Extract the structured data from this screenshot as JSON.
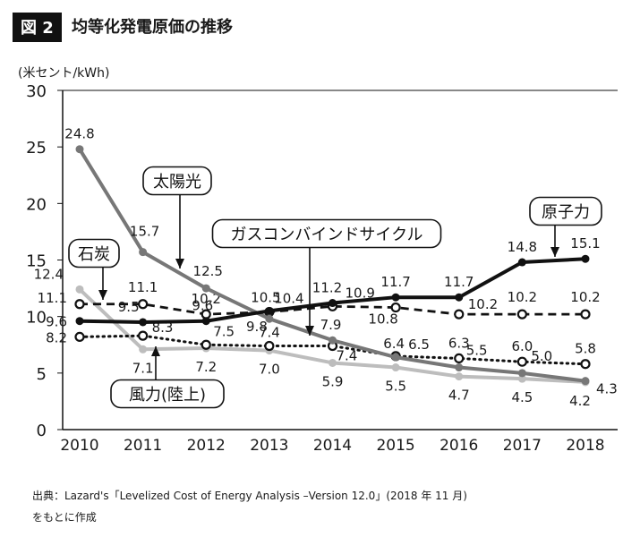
{
  "figure_label": "図 2",
  "figure_title": "均等化発電原価の推移",
  "source_line1": "出典：Lazard's「Levelized Cost of Energy Analysis –Version 12.0」(2018 年 11 月)",
  "source_line2": "をもとに作成",
  "colors": {
    "nuclear": "#111111",
    "solar": "#777777",
    "gas": "#111111",
    "coal": "#111111",
    "wind": "#bdbdbd",
    "axis": "#111111"
  },
  "chart_data": {
    "type": "line",
    "ylabel": "(米セント/kWh)",
    "xlabel": "",
    "ylim": [
      0,
      30
    ],
    "yticks": [
      0,
      5,
      10,
      15,
      20,
      25,
      30
    ],
    "grid": false,
    "x": [
      "2010",
      "2011",
      "2012",
      "2013",
      "2014",
      "2015",
      "2016",
      "2017",
      "2018"
    ],
    "series": [
      {
        "key": "solar",
        "name": "太陽光",
        "style": "solid-gray",
        "marker": "dot",
        "values": [
          24.8,
          15.7,
          12.5,
          9.8,
          7.9,
          6.4,
          5.5,
          5.0,
          4.3
        ],
        "labels": [
          "24.8",
          "15.7",
          "12.5",
          "9.8",
          "7.9",
          "6.4",
          "5.5",
          "5.0",
          "4.3"
        ]
      },
      {
        "key": "nuclear",
        "name": "原子力",
        "style": "solid-black",
        "marker": "dot",
        "values": [
          9.6,
          9.5,
          9.6,
          10.5,
          11.2,
          11.7,
          11.7,
          14.8,
          15.1
        ],
        "labels": [
          "9.6",
          "9.5",
          "9.6",
          "10.5",
          "11.2",
          "11.7",
          "11.7",
          "14.8",
          "15.1"
        ]
      },
      {
        "key": "coal",
        "name": "石炭",
        "style": "dashed",
        "marker": "ring",
        "values": [
          11.1,
          11.1,
          10.2,
          10.4,
          10.9,
          10.8,
          10.2,
          10.2,
          10.2
        ],
        "labels": [
          "11.1",
          "11.1",
          "10.2",
          "10.4",
          "10.9",
          "10.8",
          "10.2",
          "10.2",
          "10.2"
        ]
      },
      {
        "key": "gas",
        "name": "ガスコンバインドサイクル",
        "style": "dotted",
        "marker": "ring",
        "values": [
          8.2,
          8.3,
          7.5,
          7.4,
          7.4,
          6.5,
          6.3,
          6.0,
          5.8
        ],
        "labels": [
          "8.2",
          "8.3",
          "7.5",
          "7.4",
          "7.4",
          "6.5",
          "6.3",
          "6.0",
          "5.8"
        ]
      },
      {
        "key": "wind",
        "name": "風力(陸上)",
        "style": "solid-lightgray",
        "marker": "dot",
        "values": [
          12.4,
          7.1,
          7.2,
          7.0,
          5.9,
          5.5,
          4.7,
          4.5,
          4.2
        ],
        "labels": [
          "12.4",
          "7.1",
          "7.2",
          "7.0",
          "5.9",
          "5.5",
          "4.7",
          "4.5",
          "4.2"
        ]
      }
    ]
  }
}
